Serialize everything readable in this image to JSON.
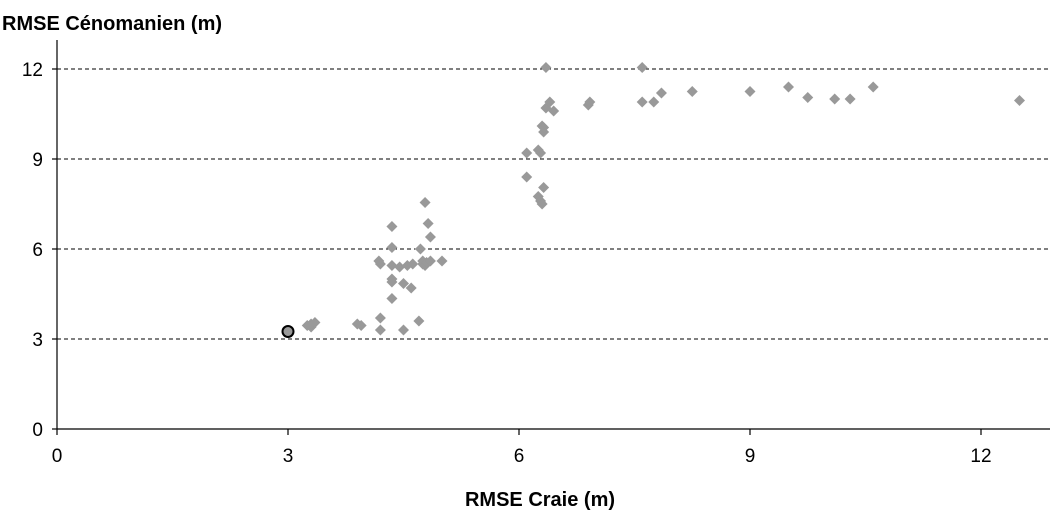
{
  "chart_data": {
    "type": "scatter",
    "title": "",
    "xlabel": "RMSE Craie (m)",
    "ylabel": "RMSE Cénomanien (m)",
    "xlim": [
      0,
      13
    ],
    "ylim": [
      0,
      12
    ],
    "x_ticks": [
      "0",
      "3",
      "6",
      "9",
      "12"
    ],
    "y_ticks": [
      "0",
      "3",
      "6",
      "9",
      "12"
    ],
    "x_tick_values": [
      0,
      3,
      6,
      9,
      12
    ],
    "y_tick_values": [
      0,
      3,
      6,
      9,
      12
    ],
    "grid": "horizontal-dashed",
    "point_color": "#999999",
    "highlight_color": "#999999",
    "highlight_stroke": "#000000",
    "series": [
      {
        "points": [
          [
            3.3,
            3.4
          ],
          [
            3.3,
            3.5
          ],
          [
            3.35,
            3.55
          ],
          [
            3.25,
            3.45
          ],
          [
            3.9,
            3.5
          ],
          [
            3.95,
            3.45
          ],
          [
            4.2,
            3.3
          ],
          [
            4.2,
            3.7
          ],
          [
            4.18,
            5.6
          ],
          [
            4.2,
            5.5
          ],
          [
            4.35,
            6.75
          ],
          [
            4.35,
            6.05
          ],
          [
            4.35,
            5.45
          ],
          [
            4.35,
            5.0
          ],
          [
            4.35,
            4.9
          ],
          [
            4.35,
            4.35
          ],
          [
            4.45,
            5.4
          ],
          [
            4.5,
            4.85
          ],
          [
            4.5,
            3.3
          ],
          [
            4.55,
            5.45
          ],
          [
            4.6,
            4.7
          ],
          [
            4.62,
            5.5
          ],
          [
            4.7,
            3.6
          ],
          [
            4.72,
            6.0
          ],
          [
            4.75,
            5.6
          ],
          [
            4.75,
            5.5
          ],
          [
            4.78,
            5.45
          ],
          [
            4.8,
            5.55
          ],
          [
            4.78,
            7.55
          ],
          [
            4.82,
            6.85
          ],
          [
            4.85,
            6.4
          ],
          [
            4.85,
            5.6
          ],
          [
            5.0,
            5.6
          ],
          [
            6.1,
            9.2
          ],
          [
            6.1,
            8.4
          ],
          [
            6.25,
            9.3
          ],
          [
            6.28,
            9.2
          ],
          [
            6.25,
            7.75
          ],
          [
            6.28,
            7.6
          ],
          [
            6.3,
            7.5
          ],
          [
            6.32,
            8.05
          ],
          [
            6.3,
            10.1
          ],
          [
            6.32,
            9.9
          ],
          [
            6.32,
            10.05
          ],
          [
            6.35,
            10.7
          ],
          [
            6.35,
            12.05
          ],
          [
            6.4,
            10.9
          ],
          [
            6.45,
            10.6
          ],
          [
            6.9,
            10.8
          ],
          [
            6.92,
            10.9
          ],
          [
            7.6,
            12.05
          ],
          [
            7.6,
            10.9
          ],
          [
            7.75,
            10.9
          ],
          [
            7.85,
            11.2
          ],
          [
            8.25,
            11.25
          ],
          [
            9.0,
            11.25
          ],
          [
            9.5,
            11.4
          ],
          [
            9.75,
            11.05
          ],
          [
            10.1,
            11.0
          ],
          [
            10.3,
            11.0
          ],
          [
            10.6,
            11.4
          ],
          [
            12.5,
            10.95
          ]
        ]
      },
      {
        "marker": "circle",
        "points": [
          [
            3.0,
            3.25
          ]
        ]
      }
    ]
  }
}
